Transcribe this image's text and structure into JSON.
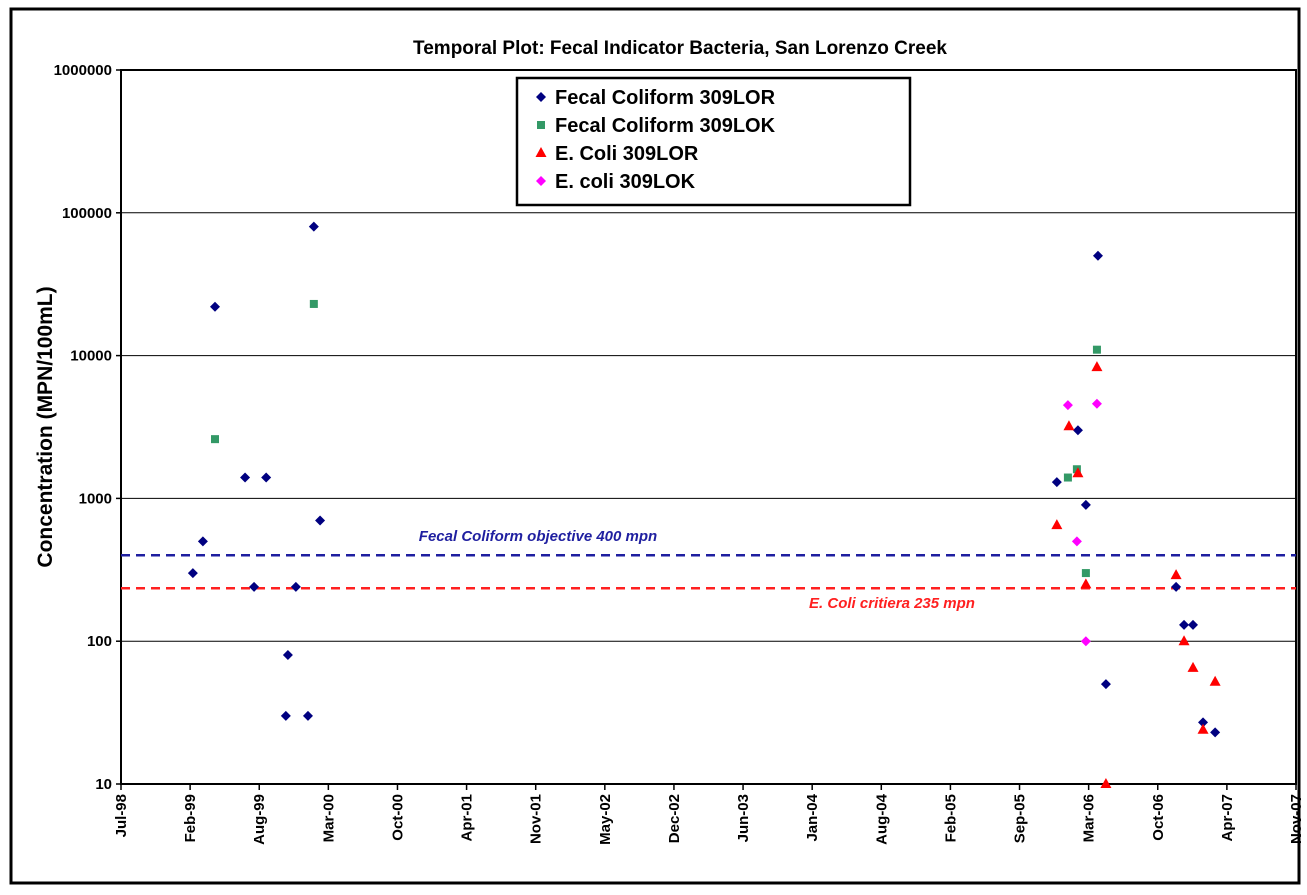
{
  "chart_data": {
    "type": "scatter",
    "title": "Temporal Plot: Fecal Indicator Bacteria, San Lorenzo Creek",
    "y_label": "Concentration (MPN/100mL)",
    "log_y": true,
    "grid": true,
    "legend": "top",
    "ylim": [
      10,
      1000000
    ],
    "yticks": [
      10,
      100,
      1000,
      10000,
      100000,
      1000000
    ],
    "xlim": [
      36000,
      39400
    ],
    "xticks": [
      {
        "value": 36000,
        "label": "Jul-98"
      },
      {
        "value": 36200,
        "label": "Feb-99"
      },
      {
        "value": 36400,
        "label": "Aug-99"
      },
      {
        "value": 36600,
        "label": "Mar-00"
      },
      {
        "value": 36800,
        "label": "Oct-00"
      },
      {
        "value": 37000,
        "label": "Apr-01"
      },
      {
        "value": 37200,
        "label": "Nov-01"
      },
      {
        "value": 37400,
        "label": "May-02"
      },
      {
        "value": 37600,
        "label": "Dec-02"
      },
      {
        "value": 37800,
        "label": "Jun-03"
      },
      {
        "value": 38000,
        "label": "Jan-04"
      },
      {
        "value": 38200,
        "label": "Aug-04"
      },
      {
        "value": 38400,
        "label": "Feb-05"
      },
      {
        "value": 38600,
        "label": "Sep-05"
      },
      {
        "value": 38800,
        "label": "Mar-06"
      },
      {
        "value": 39000,
        "label": "Oct-06"
      },
      {
        "value": 39200,
        "label": "Apr-07"
      },
      {
        "value": 39400,
        "label": "Nov-07"
      }
    ],
    "series": [
      {
        "name": "Fecal Coliform 309LOR",
        "color": "#000080",
        "marker": "diamond",
        "x": [
          36208,
          36237,
          36272,
          36359,
          36385,
          36420,
          36477,
          36483,
          36506,
          36541,
          36558,
          36576,
          38708,
          38769,
          38792,
          38827,
          38850,
          39053,
          39076,
          39102,
          39131,
          39166
        ],
        "values": [
          300,
          500,
          22000,
          1400,
          240,
          1400,
          30,
          80,
          240,
          30,
          80000,
          700,
          1300,
          3000,
          900,
          50000,
          50,
          240,
          130,
          130,
          27,
          23
        ]
      },
      {
        "name": "Fecal Coliform 309LOK",
        "color": "#339966",
        "marker": "square",
        "x": [
          36272,
          36558,
          38740,
          38766,
          38792,
          38824
        ],
        "values": [
          2600,
          23000,
          1400,
          1600,
          300,
          11000
        ]
      },
      {
        "name": "E. Coli 309LOR",
        "color": "#ff0000",
        "marker": "triangle",
        "x": [
          38708,
          38743,
          38769,
          38792,
          38824,
          38850,
          39053,
          39076,
          39102,
          39131,
          39166
        ],
        "values": [
          650,
          3200,
          1500,
          250,
          8300,
          10,
          290,
          100,
          65,
          24,
          52
        ]
      },
      {
        "name": "E. coli 309LOK",
        "color": "#ff00ff",
        "marker": "diamond",
        "x": [
          38740,
          38766,
          38792,
          38824
        ],
        "values": [
          4500,
          500,
          100,
          4600
        ]
      }
    ],
    "reference_lines": [
      {
        "value": 400,
        "label": "Fecal Coliform objective 400 mpn",
        "color": "#1f1fa0"
      },
      {
        "value": 235,
        "label": "E. Coli critiera 235 mpn",
        "color": "#ff2020"
      }
    ]
  }
}
